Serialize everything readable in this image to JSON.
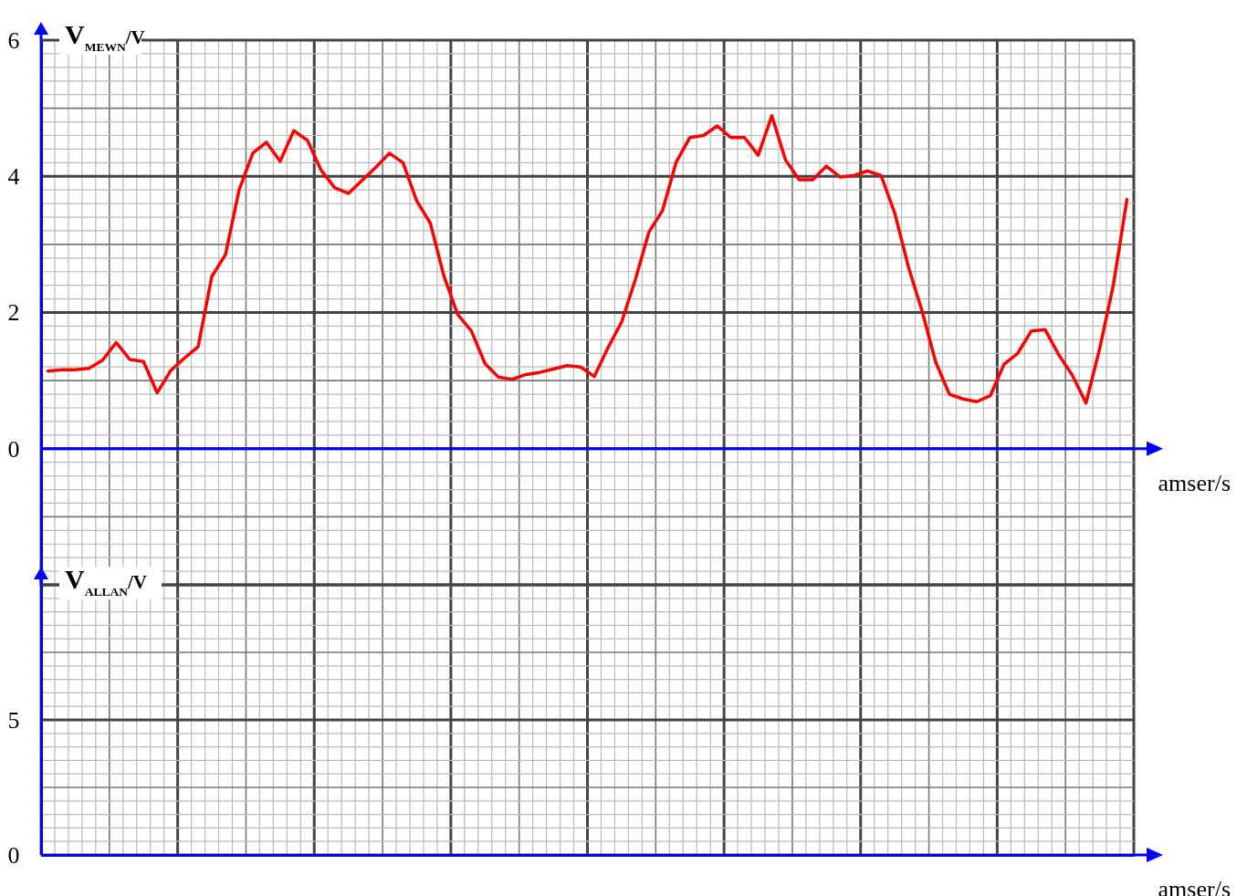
{
  "chart_data": [
    {
      "type": "line",
      "ylabel": "V$_{MEWN}$/V",
      "xlabel": "amser/s",
      "categories": [
        null,
        null,
        null,
        null,
        null,
        null,
        null,
        null,
        null,
        null,
        null,
        null,
        null,
        null,
        null,
        null,
        null,
        null,
        null,
        null,
        null,
        null,
        null,
        null,
        null,
        null,
        null,
        null,
        null,
        null,
        null,
        null,
        null,
        null,
        null,
        null,
        null,
        null,
        null,
        null,
        null,
        null,
        null,
        null,
        null,
        null,
        null,
        null,
        null,
        null,
        null,
        null,
        null,
        null,
        null,
        null,
        null,
        null,
        null,
        null,
        null,
        null,
        null,
        null,
        null,
        null,
        null,
        null,
        null,
        null,
        null,
        null,
        null,
        null,
        null,
        null,
        null,
        null,
        null,
        null
      ],
      "ylim": [
        -2,
        6
      ],
      "yticks": [
        {
          "value": -2,
          "label": null
        },
        0,
        2,
        4,
        6
      ],
      "grid": true,
      "ref_lines": [
        {
          "axis": "y",
          "value": 0,
          "color": "#0000ff"
        }
      ],
      "marker": "none",
      "line_style": "solid",
      "series": [
        {
          "color": "#ff0000",
          "values": [
            1.14,
            1.16,
            1.16,
            1.18,
            1.3,
            1.56,
            1.31,
            1.28,
            0.82,
            1.15,
            1.33,
            1.5,
            2.53,
            2.85,
            3.8,
            4.34,
            4.5,
            4.22,
            4.67,
            4.53,
            4.09,
            3.83,
            3.75,
            3.94,
            4.13,
            4.34,
            4.2,
            3.64,
            3.31,
            2.53,
            1.97,
            1.73,
            1.25,
            1.05,
            1.02,
            1.09,
            1.12,
            1.17,
            1.22,
            1.2,
            1.06,
            1.48,
            1.86,
            2.48,
            3.18,
            3.5,
            4.21,
            4.57,
            4.6,
            4.74,
            4.57,
            4.57,
            4.31,
            4.89,
            4.24,
            3.95,
            3.95,
            4.15,
            3.99,
            4.01,
            4.08,
            4.01,
            3.46,
            2.67,
            2.02,
            1.27,
            0.8,
            0.73,
            0.69,
            0.78,
            1.24,
            1.4,
            1.73,
            1.75,
            1.38,
            1.08,
            0.67,
            1.47,
            2.4,
            3.66
          ]
        }
      ]
    },
    {
      "type": "line",
      "ylabel": "V$_{ALLAN}$/V",
      "xlabel": "amser/s",
      "categories": [
        null,
        null,
        null,
        null,
        null,
        null,
        null,
        null
      ],
      "ylim": [
        0,
        10
      ],
      "yticks": [
        0,
        5,
        {
          "value": 10,
          "label": null
        }
      ],
      "grid": true
    }
  ]
}
